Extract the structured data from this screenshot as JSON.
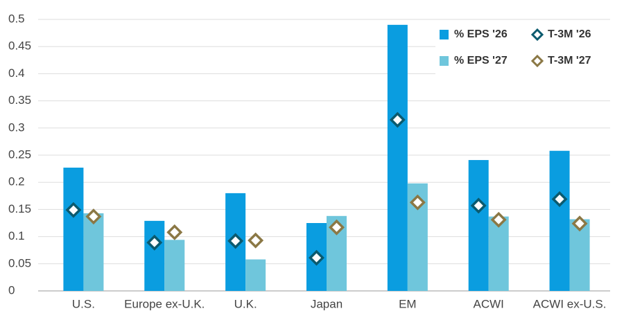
{
  "chart_data": {
    "type": "bar",
    "categories": [
      "U.S.",
      "Europe ex-U.K.",
      "U.K.",
      "Japan",
      "EM",
      "ACWI",
      "ACWI ex-U.S."
    ],
    "series": [
      {
        "name": "% EPS '26",
        "color": "#0a9de0",
        "mark": "bar",
        "values": [
          0.227,
          0.129,
          0.18,
          0.125,
          0.49,
          0.241,
          0.258
        ]
      },
      {
        "name": "% EPS '27",
        "color": "#6fc6dc",
        "mark": "bar",
        "values": [
          0.143,
          0.094,
          0.058,
          0.138,
          0.198,
          0.137,
          0.132
        ]
      },
      {
        "name": "T-3M '26",
        "color": "#0b5a6e",
        "mark": "diamond",
        "values": [
          0.149,
          0.089,
          0.092,
          0.061,
          0.315,
          0.157,
          0.169
        ]
      },
      {
        "name": "T-3M '27",
        "color": "#8b7845",
        "mark": "diamond",
        "values": [
          0.137,
          0.108,
          0.093,
          0.117,
          0.163,
          0.131,
          0.124
        ]
      }
    ],
    "ylim": [
      0,
      0.5
    ],
    "yticks": [
      0,
      0.05,
      0.1,
      0.15,
      0.2,
      0.25,
      0.3,
      0.35,
      0.4,
      0.45,
      0.5
    ],
    "grid": true,
    "legend": "top-right"
  }
}
